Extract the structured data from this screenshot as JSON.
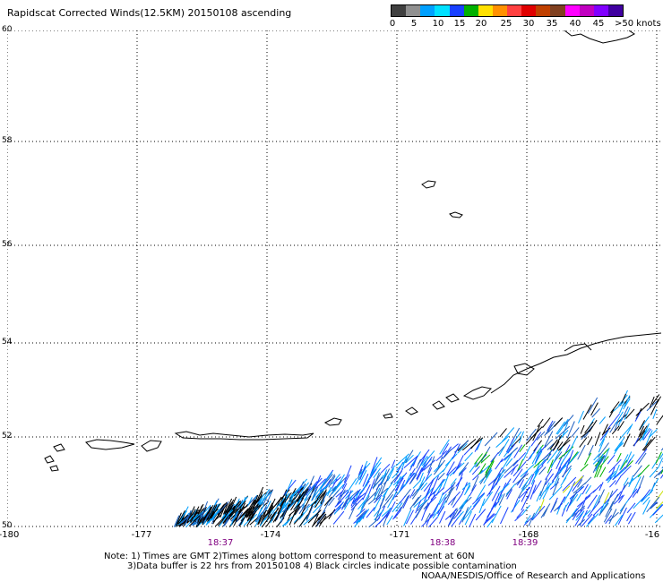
{
  "title": "Rapidscat Corrected Winds(12.5KM) 20150108 ascending",
  "legend": {
    "colors": [
      "#404040",
      "#909090",
      "#00a0ff",
      "#00e0ff",
      "#1840ff",
      "#00b000",
      "#ffe000",
      "#ff9000",
      "#ff4040",
      "#e00000",
      "#c04000",
      "#804020",
      "#ff00ff",
      "#c000c0",
      "#8000ff",
      "#4000a0"
    ],
    "labels": [
      "0",
      "5",
      "10",
      "15",
      "20",
      "25",
      "30",
      "35",
      "40",
      "45",
      ">50 knots"
    ]
  },
  "map": {
    "lat_labels": [
      "60",
      "58",
      "56",
      "54",
      "52",
      "50"
    ],
    "lon_labels": [
      "-180",
      "-177",
      "-174",
      "-171",
      "-168",
      "-16"
    ],
    "time_labels": [
      "18:37",
      "18:38",
      "18:39"
    ]
  },
  "notes": {
    "line1": "Note: 1) Times are GMT 2)Times along bottom correspond to measurement at 60N",
    "line2": "3)Data buffer is 22 hrs from 20150108 4) Black circles indicate possible contamination",
    "line3": "NOAA/NESDIS/Office of Research and Applications"
  }
}
